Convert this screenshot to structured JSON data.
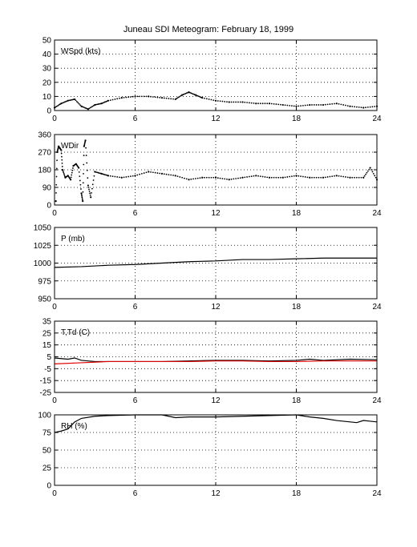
{
  "title": "Juneau SDI Meteogram:  February 18, 1999",
  "chart_data": [
    {
      "type": "scatter",
      "label": "WSpd (kts)",
      "ylim": [
        0,
        50
      ],
      "yticks": [
        0,
        10,
        20,
        30,
        40,
        50
      ],
      "xlim": [
        0,
        24
      ],
      "xticks": [
        0,
        6,
        12,
        18,
        24
      ],
      "grid": true,
      "series": [
        {
          "color": "#000000",
          "style": "dots",
          "x": [
            0,
            0.5,
            1,
            1.5,
            2,
            2.5,
            3,
            3.5,
            4,
            5,
            6,
            7,
            8,
            9,
            9.5,
            10,
            10.5,
            11,
            12,
            13,
            14,
            15,
            16,
            17,
            18,
            19,
            20,
            21,
            22,
            23,
            24
          ],
          "y": [
            2,
            5,
            7,
            8,
            3,
            1,
            4,
            5,
            7,
            9,
            10,
            10,
            9,
            8,
            11,
            13,
            11,
            9,
            7,
            6,
            6,
            5,
            5,
            4,
            3,
            4,
            4,
            5,
            3,
            2,
            3
          ]
        }
      ]
    },
    {
      "type": "scatter",
      "label": "WDir",
      "ylim": [
        0,
        360
      ],
      "yticks": [
        0,
        90,
        180,
        270,
        360
      ],
      "xlim": [
        0,
        24
      ],
      "xticks": [
        0,
        6,
        12,
        18,
        24
      ],
      "grid": true,
      "series": [
        {
          "color": "#000000",
          "style": "dots",
          "x": [
            0.1,
            0.2,
            0.3,
            0.4,
            0.5,
            0.6,
            0.8,
            1,
            1.2,
            1.4,
            1.6,
            1.8,
            2,
            2.1,
            2.2,
            2.3,
            2.5,
            2.7,
            3,
            3.5,
            4,
            5,
            6,
            7,
            8,
            9,
            10,
            11,
            12,
            13,
            14,
            15,
            16,
            17,
            18,
            19,
            20,
            21,
            22,
            23,
            23.5,
            24
          ],
          "y": [
            20,
            270,
            300,
            290,
            280,
            180,
            140,
            150,
            130,
            200,
            210,
            190,
            60,
            20,
            300,
            330,
            100,
            40,
            170,
            160,
            150,
            140,
            150,
            170,
            160,
            150,
            130,
            140,
            140,
            130,
            140,
            150,
            140,
            140,
            150,
            140,
            140,
            150,
            140,
            140,
            190,
            130
          ]
        }
      ]
    },
    {
      "type": "line",
      "label": "P (mb)",
      "ylim": [
        950,
        1050
      ],
      "yticks": [
        950,
        975,
        1000,
        1025,
        1050
      ],
      "xlim": [
        0,
        24
      ],
      "xticks": [
        0,
        6,
        12,
        18,
        24
      ],
      "grid": true,
      "series": [
        {
          "color": "#000000",
          "x": [
            0,
            2,
            4,
            6,
            8,
            10,
            12,
            14,
            16,
            18,
            20,
            22,
            24
          ],
          "y": [
            994,
            995,
            997,
            998,
            1000,
            1002,
            1003,
            1005,
            1005,
            1006,
            1007,
            1007,
            1007
          ]
        }
      ]
    },
    {
      "type": "line",
      "label": "T,Td (C)",
      "ylim": [
        -25,
        35
      ],
      "yticks": [
        -25,
        -15,
        -5,
        5,
        15,
        25,
        35
      ],
      "xlim": [
        0,
        24
      ],
      "xticks": [
        0,
        6,
        12,
        18,
        24
      ],
      "grid": true,
      "series": [
        {
          "color": "#000000",
          "x": [
            0,
            1,
            1.5,
            2,
            3,
            4,
            6,
            8,
            10,
            12,
            14,
            16,
            18,
            19,
            20,
            22,
            24
          ],
          "y": [
            4,
            3,
            4,
            2,
            1,
            1,
            1,
            1,
            1.5,
            2,
            2,
            1.5,
            2,
            3,
            2,
            3,
            2.5
          ]
        },
        {
          "color": "#e00000",
          "x": [
            0,
            2,
            4,
            6,
            8,
            10,
            12,
            14,
            16,
            18,
            20,
            22,
            24
          ],
          "y": [
            -1,
            0,
            1,
            1,
            1,
            1,
            1.5,
            1.5,
            1,
            1,
            1.5,
            1.5,
            1.5
          ]
        }
      ]
    },
    {
      "type": "line",
      "label": "RH (%)",
      "ylim": [
        0,
        100
      ],
      "yticks": [
        0,
        25,
        50,
        75,
        100
      ],
      "xlim": [
        0,
        24
      ],
      "xticks": [
        0,
        6,
        12,
        18,
        24
      ],
      "grid": true,
      "series": [
        {
          "color": "#000000",
          "x": [
            0,
            0.5,
            1,
            1.5,
            2,
            3,
            4,
            6,
            8,
            9,
            10,
            12,
            14,
            16,
            18,
            19,
            20,
            21,
            22,
            22.5,
            23,
            23.5,
            24
          ],
          "y": [
            75,
            77,
            80,
            90,
            95,
            98,
            99,
            100,
            100,
            96,
            97,
            97,
            98,
            99,
            100,
            97,
            95,
            92,
            90,
            89,
            92,
            91,
            90
          ]
        }
      ]
    }
  ]
}
